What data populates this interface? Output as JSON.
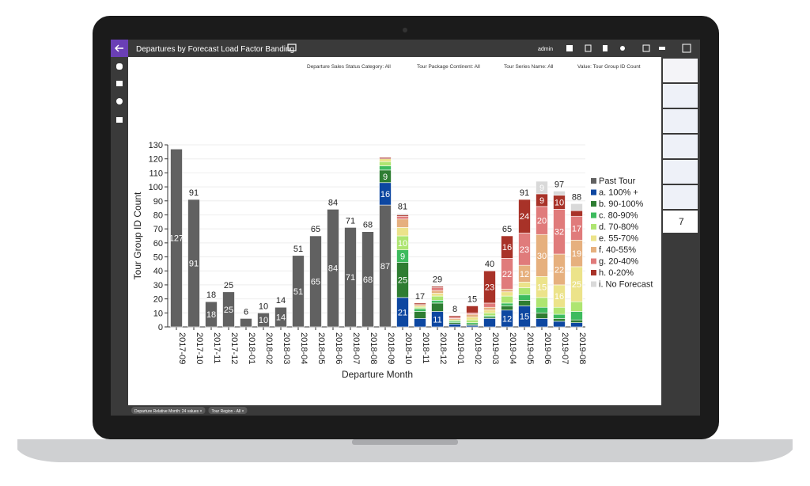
{
  "header": {
    "title": "Departures by Forecast Load Factor Banding",
    "user": "admin"
  },
  "filters": [
    "Departure Sales Status Category: All",
    "Tour Package Continent: All",
    "Tour Series Name: All",
    "Value: Tour Group ID Count"
  ],
  "chips": [
    "Departure Relative Month: 24 values ×",
    "Tour Region - All ×"
  ],
  "page_number": "7",
  "chart_data": {
    "type": "bar",
    "stacked": true,
    "x_label": "Departure Month",
    "y_label": "Tour Group ID Count",
    "categories": [
      "2017-09",
      "2017-10",
      "2017-11",
      "2017-12",
      "2018-01",
      "2018-02",
      "2018-03",
      "2018-04",
      "2018-05",
      "2018-06",
      "2018-07",
      "2018-08",
      "2018-09",
      "2018-10",
      "2018-11",
      "2018-12",
      "2019-01",
      "2019-02",
      "2019-03",
      "2019-04",
      "2019-05",
      "2019-06",
      "2019-07",
      "2019-08"
    ],
    "ylim": [
      0,
      130
    ],
    "yticks": [
      0,
      10,
      20,
      30,
      40,
      50,
      60,
      70,
      80,
      90,
      100,
      110,
      120,
      130
    ],
    "grid": true,
    "legend": "right",
    "totals": [
      null,
      91,
      18,
      25,
      6,
      10,
      14,
      51,
      65,
      84,
      71,
      68,
      null,
      81,
      17,
      29,
      8,
      15,
      40,
      65,
      91,
      null,
      97,
      88
    ],
    "series": [
      {
        "name": "Past Tour",
        "color": "#616161",
        "values": [
          127,
          91,
          18,
          25,
          6,
          10,
          14,
          51,
          65,
          84,
          71,
          68,
          87,
          0,
          0,
          0,
          0,
          0,
          0,
          0,
          0,
          0,
          0,
          0
        ]
      },
      {
        "name": "a. 100% +",
        "color": "#0d47a1",
        "values": [
          0,
          0,
          0,
          0,
          0,
          0,
          0,
          0,
          0,
          0,
          0,
          0,
          16,
          21,
          6,
          11,
          2,
          1,
          6,
          12,
          15,
          6,
          4,
          3
        ]
      },
      {
        "name": "b. 90-100%",
        "color": "#2e7d32",
        "values": [
          0,
          0,
          0,
          0,
          0,
          0,
          0,
          0,
          0,
          0,
          0,
          0,
          9,
          25,
          5,
          6,
          1,
          1,
          1,
          3,
          4,
          4,
          2,
          2
        ]
      },
      {
        "name": "c. 80-90%",
        "color": "#3dbb5e",
        "values": [
          0,
          0,
          0,
          0,
          0,
          0,
          0,
          0,
          0,
          0,
          0,
          0,
          3,
          9,
          2,
          2,
          1,
          1,
          1,
          2,
          4,
          4,
          3,
          6
        ]
      },
      {
        "name": "d. 70-80%",
        "color": "#aee571",
        "values": [
          0,
          0,
          0,
          0,
          0,
          0,
          0,
          0,
          0,
          0,
          0,
          0,
          3,
          10,
          1,
          3,
          1,
          2,
          2,
          5,
          5,
          7,
          5,
          7
        ]
      },
      {
        "name": "e. 55-70%",
        "color": "#ece38a",
        "values": [
          0,
          0,
          0,
          0,
          0,
          0,
          0,
          0,
          0,
          0,
          0,
          0,
          2,
          6,
          1,
          2,
          0,
          2,
          2,
          3,
          4,
          15,
          16,
          25
        ]
      },
      {
        "name": "f. 40-55%",
        "color": "#e6b07e",
        "values": [
          0,
          0,
          0,
          0,
          0,
          0,
          0,
          0,
          0,
          0,
          0,
          0,
          0,
          6,
          1,
          2,
          1,
          2,
          2,
          2,
          12,
          30,
          22,
          19
        ]
      },
      {
        "name": "g. 20-40%",
        "color": "#e07b7b",
        "values": [
          0,
          0,
          0,
          0,
          0,
          0,
          0,
          0,
          0,
          0,
          0,
          0,
          0,
          2,
          0,
          2,
          1,
          1,
          3,
          22,
          23,
          20,
          32,
          17
        ]
      },
      {
        "name": "h. 0-20%",
        "color": "#a83228",
        "values": [
          0,
          0,
          0,
          0,
          0,
          0,
          0,
          0,
          0,
          0,
          0,
          0,
          1,
          1,
          1,
          1,
          1,
          5,
          23,
          16,
          24,
          9,
          10,
          4
        ]
      },
      {
        "name": "i. No Forecast",
        "color": "#d9d9d9",
        "values": [
          0,
          0,
          0,
          0,
          0,
          0,
          0,
          0,
          0,
          0,
          0,
          0,
          0,
          1,
          0,
          0,
          0,
          0,
          0,
          0,
          0,
          9,
          3,
          5
        ]
      }
    ]
  }
}
